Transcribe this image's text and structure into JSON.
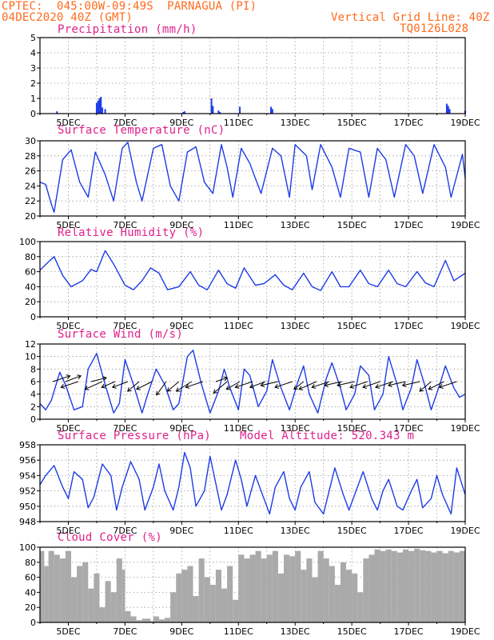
{
  "header": {
    "line1": "CPTEC:  045:00W-09:49S  PARNAGUA (PI)",
    "line2": "04DEC2020 40Z (GMT)",
    "grid_note": "Vertical Grid Line: 40Z",
    "code": "TQ0126L028",
    "model_altitude": "Model Altitude: 520.343 m"
  },
  "x_ticks": [
    "5DEC",
    "7DEC",
    "9DEC",
    "11DEC",
    "13DEC",
    "15DEC",
    "17DEC",
    "19DEC"
  ],
  "colors": {
    "line": "#1e3ce6",
    "bar": "#1e3ce6",
    "cloud": "#aaaaaa",
    "title": "#e0208c",
    "header": "#ff6a1c"
  },
  "chart_data": [
    {
      "type": "bar",
      "title": "Precipitation (mm/h)",
      "ylim": [
        0,
        5
      ],
      "yticks": [
        "0",
        "1",
        "2",
        "3",
        "4",
        "5"
      ],
      "x": [
        4.6,
        6.0,
        6.05,
        6.1,
        6.15,
        6.2,
        6.3,
        9.05,
        9.1,
        10.05,
        10.1,
        10.3,
        10.35,
        11.05,
        12.15,
        12.2,
        18.35,
        18.4,
        18.45,
        19.0
      ],
      "values": [
        0.15,
        0.7,
        0.85,
        1.0,
        1.1,
        0.4,
        0.3,
        0.1,
        0.15,
        1.0,
        0.5,
        0.2,
        0.1,
        0.45,
        0.45,
        0.3,
        0.65,
        0.5,
        0.3,
        0.2
      ]
    },
    {
      "type": "line",
      "title": "Surface Temperature (nC)",
      "ylim": [
        20,
        30
      ],
      "yticks": [
        "20",
        "22",
        "24",
        "26",
        "28",
        "30"
      ],
      "x": [
        4.0,
        4.2,
        4.4,
        4.5,
        4.8,
        5.1,
        5.4,
        5.7,
        5.95,
        6.3,
        6.6,
        6.9,
        7.1,
        7.4,
        7.6,
        8.0,
        8.3,
        8.6,
        8.9,
        9.2,
        9.5,
        9.8,
        10.1,
        10.4,
        10.6,
        10.8,
        11.1,
        11.4,
        11.6,
        11.8,
        12.2,
        12.5,
        12.8,
        13.0,
        13.4,
        13.6,
        13.9,
        14.3,
        14.6,
        14.9,
        15.3,
        15.6,
        15.9,
        16.2,
        16.5,
        16.9,
        17.2,
        17.5,
        17.9,
        18.3,
        18.5,
        18.9,
        19.0
      ],
      "values": [
        24.5,
        24.2,
        21.6,
        20.5,
        27.5,
        28.8,
        24.5,
        22.5,
        28.5,
        25.5,
        22.0,
        29.0,
        29.8,
        24.5,
        22.0,
        29.0,
        29.5,
        24.0,
        22.0,
        28.5,
        29.2,
        24.5,
        23.0,
        29.5,
        26.5,
        22.5,
        29.0,
        27.0,
        25.0,
        23.0,
        29.0,
        28.0,
        22.5,
        29.5,
        28.0,
        23.5,
        29.5,
        26.5,
        22.5,
        29.0,
        28.5,
        22.5,
        29.0,
        27.5,
        22.5,
        29.5,
        28.0,
        23.0,
        29.5,
        26.5,
        22.5,
        28.2,
        25.0
      ]
    },
    {
      "type": "line",
      "title": "Relative Humidity (%)",
      "ylim": [
        0,
        100
      ],
      "yticks": [
        "0",
        "20",
        "40",
        "60",
        "80",
        "100"
      ],
      "x": [
        4.0,
        4.3,
        4.5,
        4.8,
        5.1,
        5.5,
        5.8,
        6.0,
        6.3,
        6.6,
        7.0,
        7.3,
        7.6,
        7.9,
        8.2,
        8.5,
        8.9,
        9.3,
        9.6,
        9.9,
        10.3,
        10.6,
        10.9,
        11.2,
        11.6,
        11.9,
        12.3,
        12.6,
        12.9,
        13.3,
        13.6,
        13.9,
        14.3,
        14.6,
        14.9,
        15.3,
        15.6,
        15.9,
        16.3,
        16.6,
        16.9,
        17.3,
        17.6,
        17.9,
        18.3,
        18.6,
        19.0
      ],
      "values": [
        62,
        73,
        80,
        55,
        40,
        48,
        63,
        60,
        88,
        70,
        42,
        36,
        48,
        65,
        58,
        36,
        40,
        60,
        42,
        36,
        62,
        44,
        38,
        65,
        42,
        44,
        56,
        42,
        36,
        58,
        40,
        35,
        60,
        40,
        40,
        62,
        44,
        40,
        62,
        44,
        40,
        60,
        45,
        40,
        75,
        48,
        58
      ]
    },
    {
      "type": "line",
      "title": "Surface Wind (m/s)",
      "ylim": [
        0,
        12
      ],
      "yticks": [
        "0",
        "2",
        "4",
        "6",
        "8",
        "10",
        "12"
      ],
      "x": [
        4.0,
        4.2,
        4.4,
        4.7,
        4.9,
        5.2,
        5.5,
        5.7,
        6.0,
        6.3,
        6.6,
        6.8,
        7.0,
        7.3,
        7.6,
        7.8,
        8.1,
        8.4,
        8.7,
        8.9,
        9.2,
        9.4,
        9.7,
        10.0,
        10.3,
        10.5,
        10.7,
        11.0,
        11.2,
        11.4,
        11.7,
        12.0,
        12.2,
        12.5,
        12.8,
        13.1,
        13.3,
        13.5,
        13.8,
        14.1,
        14.3,
        14.6,
        14.8,
        15.1,
        15.3,
        15.6,
        15.8,
        16.1,
        16.3,
        16.6,
        16.8,
        17.1,
        17.3,
        17.6,
        17.8,
        18.1,
        18.3,
        18.6,
        18.8,
        19.0
      ],
      "values": [
        2.5,
        1.5,
        3.0,
        7.5,
        5.5,
        1.5,
        2.0,
        8.0,
        10.5,
        5.5,
        1.0,
        2.5,
        9.5,
        5.5,
        1.0,
        4.0,
        8.0,
        5.5,
        1.5,
        2.5,
        10.0,
        11.0,
        5.5,
        1.0,
        4.5,
        8.0,
        5.0,
        1.5,
        8.0,
        7.0,
        2.0,
        4.5,
        9.5,
        5.0,
        1.5,
        6.0,
        8.5,
        4.0,
        1.0,
        6.5,
        9.0,
        5.0,
        1.5,
        4.0,
        8.5,
        7.0,
        1.5,
        4.0,
        10.0,
        5.5,
        1.5,
        5.0,
        9.5,
        5.0,
        1.5,
        5.5,
        8.5,
        5.0,
        3.5,
        4.0
      ]
    },
    {
      "type": "line",
      "title": "Surface Pressure (hPa)",
      "ylim": [
        948,
        958
      ],
      "yticks": [
        "948",
        "950",
        "952",
        "954",
        "956",
        "958"
      ],
      "x": [
        4.0,
        4.2,
        4.5,
        4.8,
        5.0,
        5.2,
        5.5,
        5.7,
        5.9,
        6.2,
        6.5,
        6.7,
        6.9,
        7.2,
        7.5,
        7.7,
        8.0,
        8.2,
        8.4,
        8.7,
        8.9,
        9.1,
        9.3,
        9.5,
        9.8,
        10.0,
        10.2,
        10.4,
        10.6,
        10.9,
        11.1,
        11.3,
        11.6,
        11.8,
        12.1,
        12.3,
        12.6,
        12.8,
        13.0,
        13.2,
        13.5,
        13.7,
        14.0,
        14.2,
        14.4,
        14.7,
        14.9,
        15.2,
        15.4,
        15.7,
        15.9,
        16.1,
        16.3,
        16.6,
        16.8,
        17.1,
        17.3,
        17.5,
        17.8,
        18.0,
        18.2,
        18.5,
        18.7,
        19.0
      ],
      "values": [
        952.8,
        954.0,
        955.3,
        952.5,
        951.0,
        954.5,
        953.5,
        949.8,
        951.2,
        955.5,
        954.0,
        949.5,
        952.5,
        955.8,
        953.5,
        949.5,
        952.5,
        955.5,
        952.0,
        949.5,
        952.5,
        957.0,
        955.0,
        950.0,
        952.0,
        956.5,
        953.0,
        949.5,
        951.5,
        956.0,
        953.5,
        950.0,
        954.0,
        952.0,
        949.0,
        952.5,
        954.5,
        951.0,
        949.5,
        952.5,
        954.5,
        950.5,
        949.0,
        952.0,
        955.0,
        951.5,
        949.5,
        952.5,
        954.5,
        951.0,
        949.5,
        952.0,
        953.5,
        950.0,
        949.5,
        952.0,
        953.5,
        949.8,
        951.0,
        954.0,
        951.5,
        949.0,
        955.0,
        951.5
      ]
    },
    {
      "type": "area",
      "title": "Cloud Cover (%)",
      "ylim": [
        0,
        100
      ],
      "yticks": [
        "0",
        "20",
        "40",
        "60",
        "80",
        "100"
      ],
      "x": [
        4.0,
        4.15,
        4.3,
        4.5,
        4.7,
        4.9,
        5.1,
        5.3,
        5.5,
        5.7,
        5.9,
        6.1,
        6.3,
        6.5,
        6.7,
        6.9,
        7.0,
        7.2,
        7.4,
        7.6,
        7.9,
        8.0,
        8.2,
        8.4,
        8.6,
        8.8,
        9.0,
        9.2,
        9.4,
        9.6,
        9.8,
        10.0,
        10.2,
        10.4,
        10.6,
        10.8,
        11.0,
        11.2,
        11.4,
        11.6,
        11.8,
        12.0,
        12.2,
        12.4,
        12.6,
        12.8,
        13.0,
        13.2,
        13.4,
        13.6,
        13.8,
        14.0,
        14.2,
        14.4,
        14.6,
        14.8,
        15.0,
        15.2,
        15.4,
        15.6,
        15.8,
        16.0,
        16.2,
        16.4,
        16.6,
        16.8,
        17.0,
        17.2,
        17.4,
        17.6,
        17.8,
        18.0,
        18.2,
        18.4,
        18.6,
        18.8,
        19.0
      ],
      "values": [
        95,
        75,
        95,
        90,
        85,
        95,
        60,
        75,
        80,
        45,
        65,
        20,
        55,
        40,
        85,
        70,
        15,
        8,
        3,
        5,
        2,
        8,
        4,
        6,
        40,
        65,
        70,
        75,
        35,
        85,
        60,
        50,
        70,
        45,
        75,
        30,
        90,
        85,
        90,
        95,
        85,
        90,
        95,
        65,
        90,
        88,
        95,
        70,
        85,
        60,
        95,
        85,
        75,
        50,
        80,
        70,
        65,
        40,
        85,
        90,
        97,
        95,
        97,
        95,
        93,
        97,
        95,
        98,
        96,
        95,
        93,
        95,
        92,
        95,
        93,
        95,
        93
      ]
    }
  ],
  "panel_titles": [
    "Precipitation (mm/h)",
    "Surface Temperature (nC)",
    "Relative Humidity (%)",
    "Surface Wind (m/s)",
    "Surface Pressure (hPa)",
    "Cloud Cover (%)"
  ],
  "wind_vectors": {
    "x": [
      4.45,
      4.9,
      5.35,
      5.8,
      6.2,
      6.65,
      7.1,
      7.5,
      7.95,
      8.45,
      8.9,
      9.35,
      9.75,
      10.2,
      10.6,
      11.05,
      11.5,
      11.95,
      12.4,
      12.9,
      13.3,
      13.75,
      14.2,
      14.65,
      15.1,
      15.55,
      16.0,
      16.45,
      16.9,
      17.4,
      17.8,
      18.25,
      18.7
    ],
    "u": [
      0.9,
      0.8,
      -0.9,
      0.8,
      -0.9,
      -0.7,
      -0.8,
      -0.6,
      -0.8,
      -0.5,
      -0.6,
      -0.8,
      -0.9,
      0.6,
      -0.7,
      -0.7,
      -0.9,
      -0.8,
      -0.9,
      -0.9,
      -0.5,
      -0.9,
      -0.9,
      -0.9,
      -0.9,
      -0.9,
      -0.9,
      -0.9,
      -0.9,
      -0.9,
      -0.6,
      -0.8,
      -0.9
    ],
    "v": [
      0.3,
      0.3,
      -0.3,
      0.2,
      -0.4,
      -0.3,
      -0.3,
      -0.5,
      -0.4,
      -0.7,
      -0.5,
      -0.5,
      -0.3,
      0.2,
      -0.6,
      -0.4,
      -0.3,
      -0.3,
      -0.2,
      -0.3,
      -0.4,
      -0.4,
      -0.3,
      -0.2,
      -0.2,
      -0.3,
      -0.3,
      -0.3,
      -0.2,
      -0.2,
      -0.5,
      -0.4,
      -0.3
    ]
  }
}
